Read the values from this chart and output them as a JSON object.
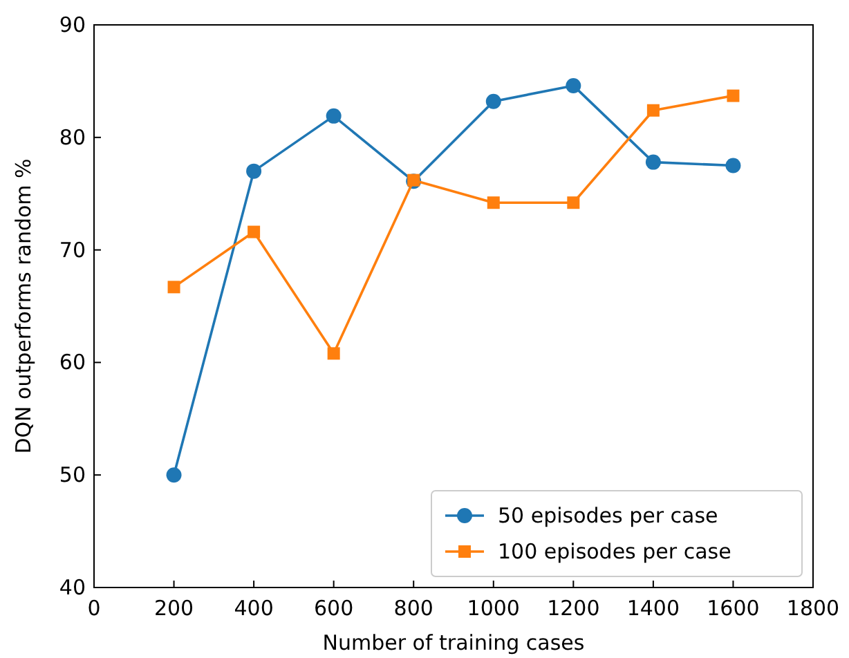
{
  "chart_data": {
    "type": "line",
    "xlabel": "Number of training cases",
    "ylabel": "DQN outperforms random %",
    "x": [
      200,
      400,
      600,
      800,
      1000,
      1200,
      1400,
      1600
    ],
    "series": [
      {
        "name": "50 episodes per case",
        "color": "#1f77b4",
        "marker": "circle",
        "values": [
          50,
          77,
          81.9,
          76.1,
          83.2,
          84.6,
          77.8,
          77.5
        ]
      },
      {
        "name": "100 episodes per case",
        "color": "#ff7f0e",
        "marker": "square",
        "values": [
          66.7,
          71.6,
          60.8,
          76.2,
          74.2,
          74.2,
          82.4,
          83.7
        ]
      }
    ],
    "xlim": [
      0,
      1800
    ],
    "xticks": [
      0,
      200,
      400,
      600,
      800,
      1000,
      1200,
      1400,
      1600,
      1800
    ],
    "ylim": [
      40,
      90
    ],
    "yticks": [
      40,
      50,
      60,
      70,
      80,
      90
    ],
    "grid": false,
    "legend": "bottom right"
  }
}
